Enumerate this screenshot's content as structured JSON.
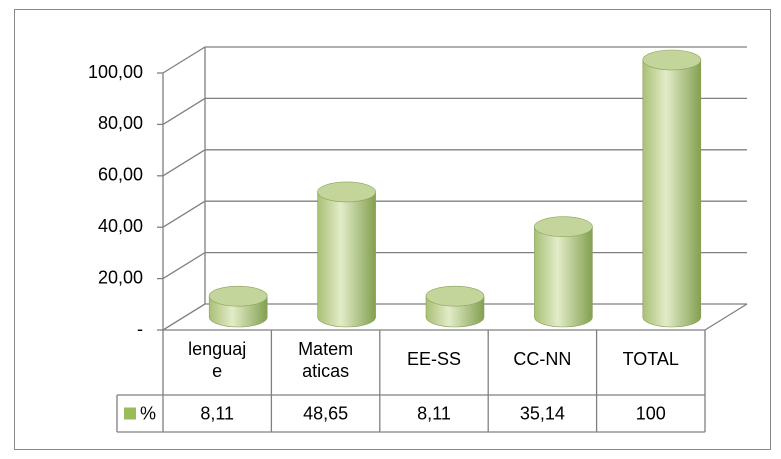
{
  "chart_data": {
    "type": "bar3d",
    "categories": [
      "lenguaje",
      "Matematicas",
      "EE-SS",
      "CC-NN",
      "TOTAL"
    ],
    "series": [
      {
        "name": "%",
        "color": "#9bbb59",
        "values": [
          8.11,
          48.65,
          8.11,
          35.14,
          100
        ],
        "value_labels": [
          "8,11",
          "48,65",
          "8,11",
          "35,14",
          "100"
        ]
      }
    ],
    "ylim": [
      0,
      100
    ],
    "yticks": [
      {
        "value": 0,
        "label": "-"
      },
      {
        "value": 20,
        "label": "20,00"
      },
      {
        "value": 40,
        "label": "40,00"
      },
      {
        "value": 60,
        "label": "60,00"
      },
      {
        "value": 80,
        "label": "80,00"
      },
      {
        "value": 100,
        "label": "100,00"
      }
    ],
    "grid": true
  }
}
